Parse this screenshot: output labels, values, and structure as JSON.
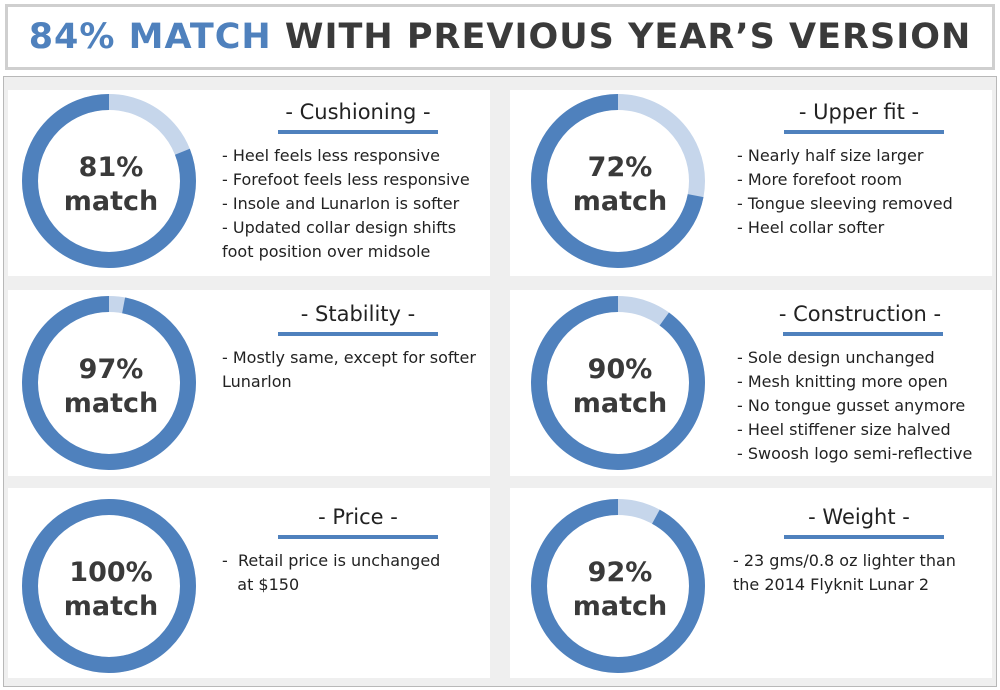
{
  "title": {
    "accent": "84% MATCH",
    "rest": "WITH PREVIOUS YEAR’S VERSION"
  },
  "colors": {
    "accent": "#4f81bd",
    "track": "#c6d6eb",
    "text": "#3a3a3a"
  },
  "chart_data": [
    {
      "type": "pie",
      "title": "- Cushioning -",
      "value": 81,
      "label_top": "81%",
      "label_bottom": "match",
      "notes": [
        "- Heel feels less responsive",
        "- Forefoot feels less responsive",
        "- Insole and Lunarlon is softer",
        "- Updated collar design shifts",
        "foot position over midsole"
      ]
    },
    {
      "type": "pie",
      "title": "- Upper fit -",
      "value": 72,
      "label_top": "72%",
      "label_bottom": "match",
      "notes": [
        "- Nearly half size larger",
        "- More forefoot room",
        "- Tongue sleeving removed",
        "- Heel collar softer"
      ]
    },
    {
      "type": "pie",
      "title": "- Stability -",
      "value": 97,
      "label_top": "97%",
      "label_bottom": "match",
      "notes": [
        "- Mostly same, except for softer",
        "Lunarlon"
      ]
    },
    {
      "type": "pie",
      "title": "- Construction -",
      "value": 90,
      "label_top": "90%",
      "label_bottom": "match",
      "notes": [
        "- Sole design unchanged",
        "- Mesh knitting more open",
        "- No tongue gusset anymore",
        "- Heel stiffener size halved",
        "- Swoosh logo semi-reflective"
      ]
    },
    {
      "type": "pie",
      "title": "- Price -",
      "value": 100,
      "label_top": "100%",
      "label_bottom": "match",
      "notes": [
        "-  Retail price is unchanged",
        "   at $150"
      ]
    },
    {
      "type": "pie",
      "title": "- Weight -",
      "value": 92,
      "label_top": "92%",
      "label_bottom": "match",
      "notes": [
        "- 23 gms/0.8 oz lighter than",
        "the 2014 Flyknit Lunar 2"
      ]
    }
  ]
}
